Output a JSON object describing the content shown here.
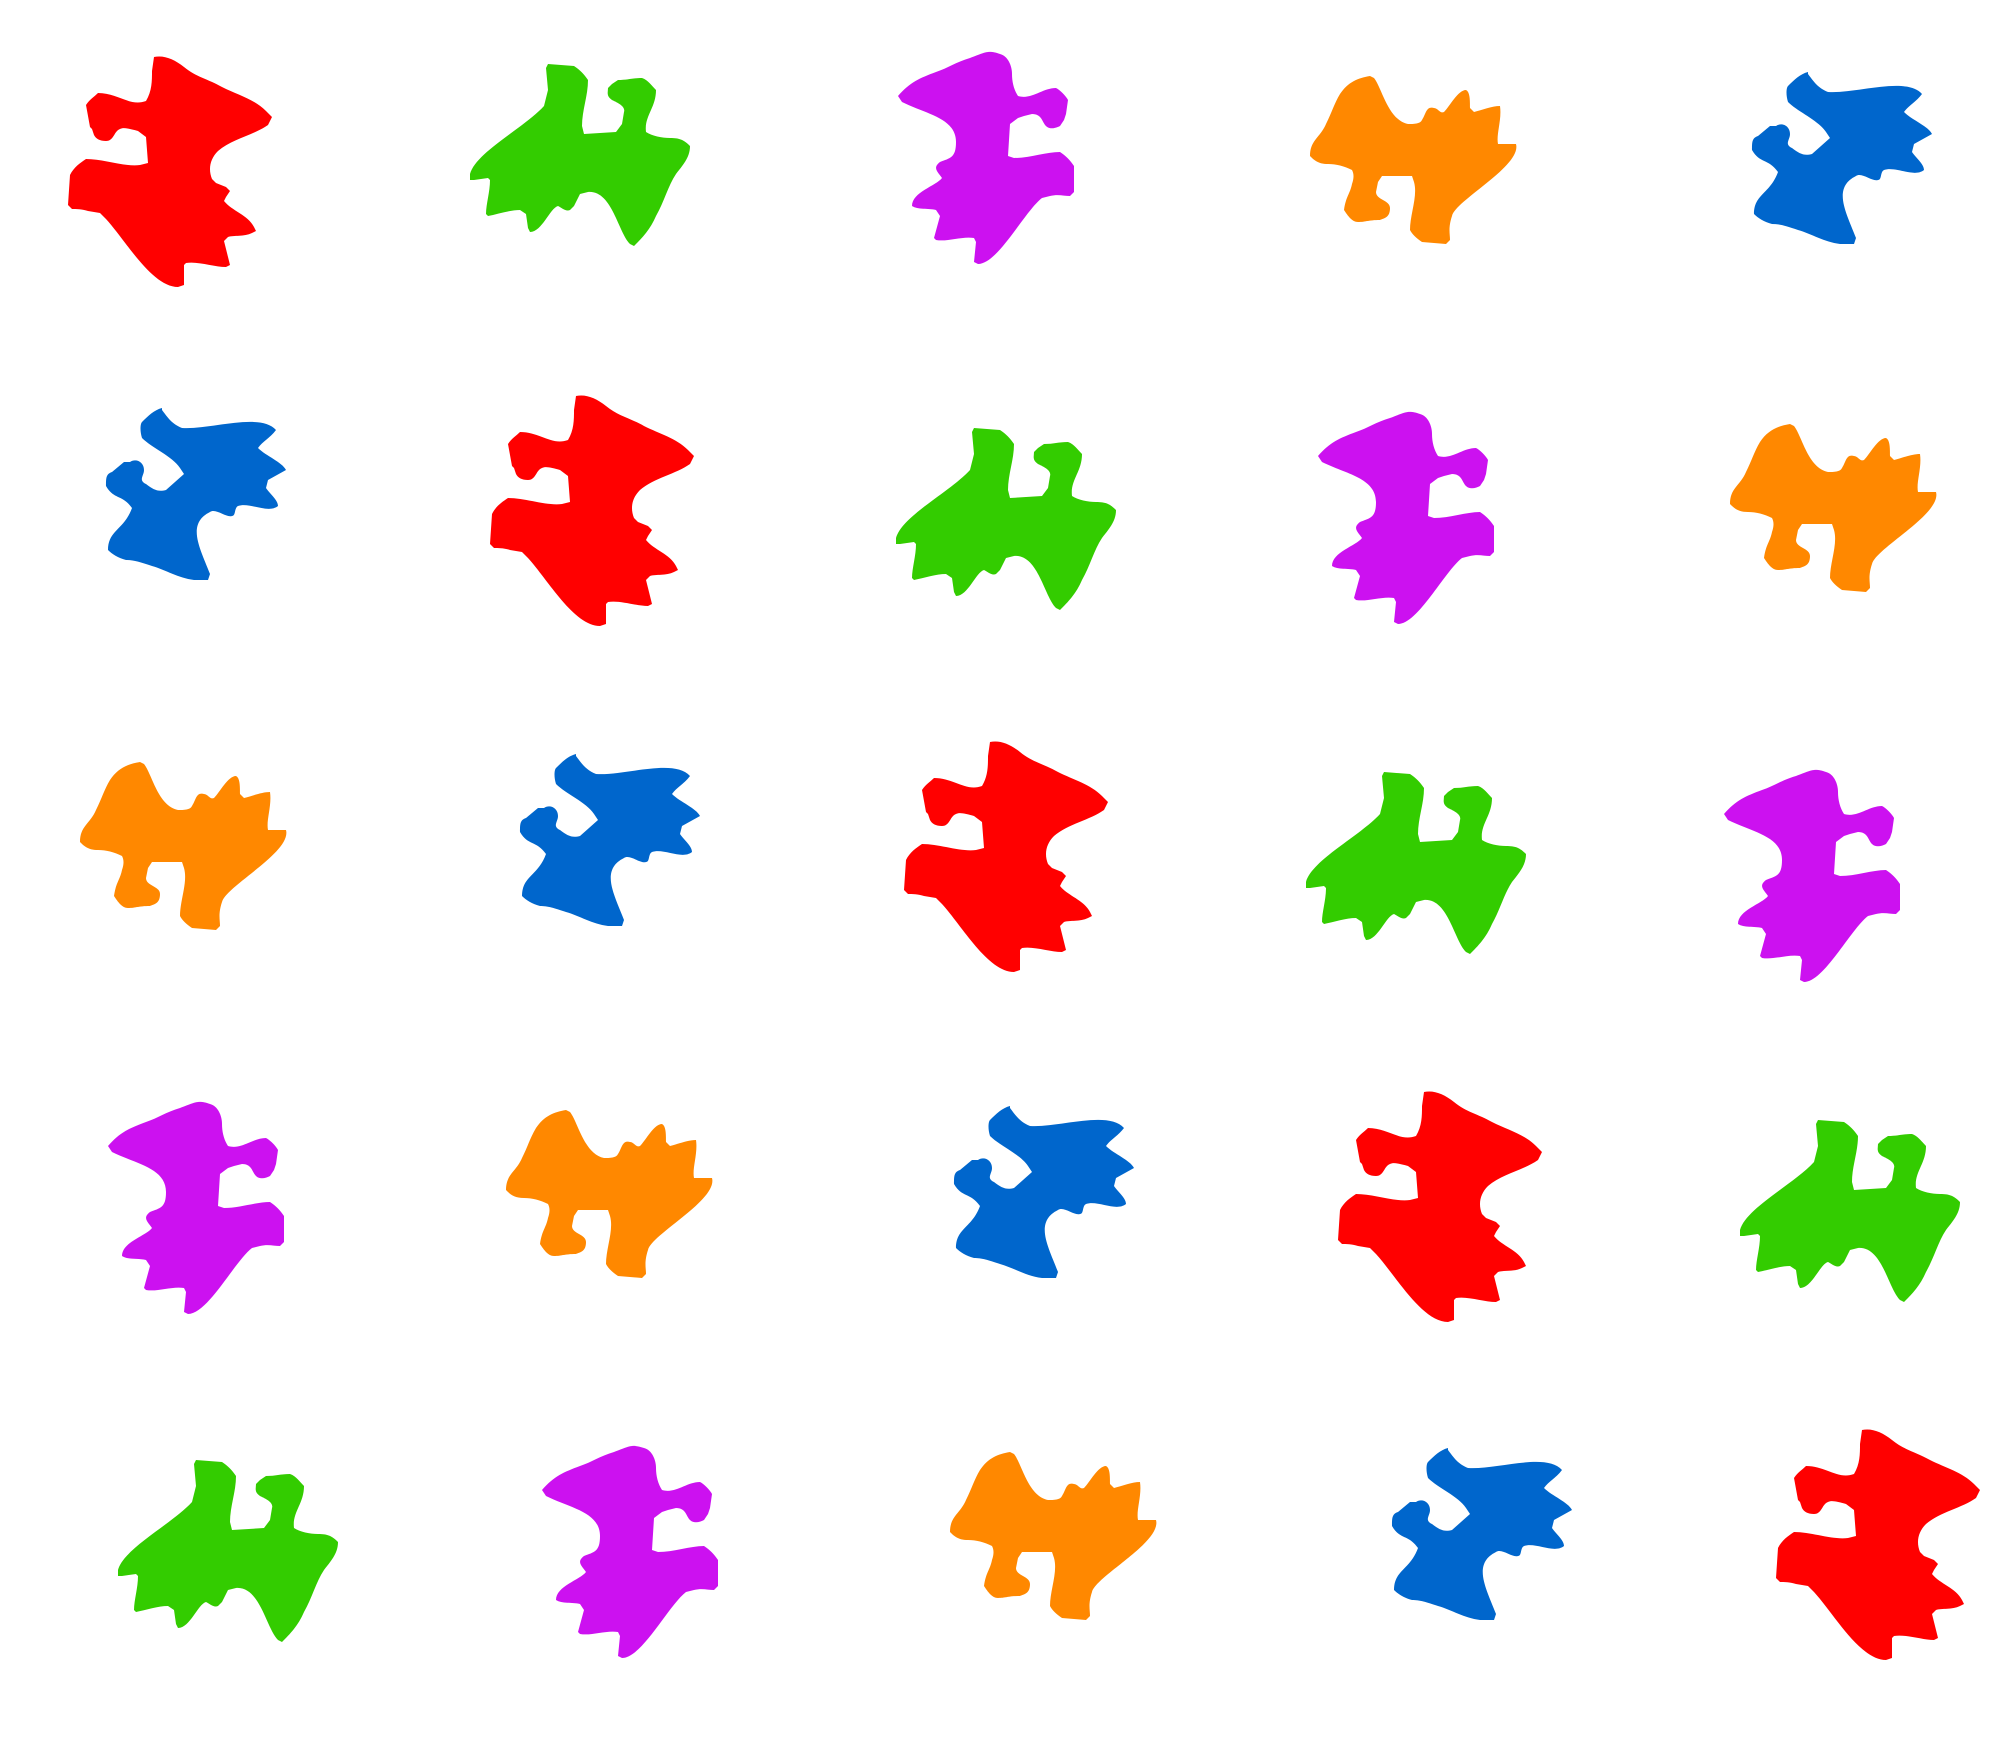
{
  "palette": {
    "red": "#ff0000",
    "green": "#33cc00",
    "magenta": "#cc11f0",
    "orange": "#ff8800",
    "blue": "#0066cc"
  },
  "grid": {
    "rows": [
      [
        "red",
        "green",
        "magenta",
        "orange",
        "blue"
      ],
      [
        "blue",
        "red",
        "green",
        "magenta",
        "orange"
      ],
      [
        "orange",
        "blue",
        "red",
        "green",
        "magenta"
      ],
      [
        "magenta",
        "orange",
        "blue",
        "red",
        "green"
      ],
      [
        "green",
        "magenta",
        "orange",
        "blue",
        "red"
      ]
    ]
  }
}
